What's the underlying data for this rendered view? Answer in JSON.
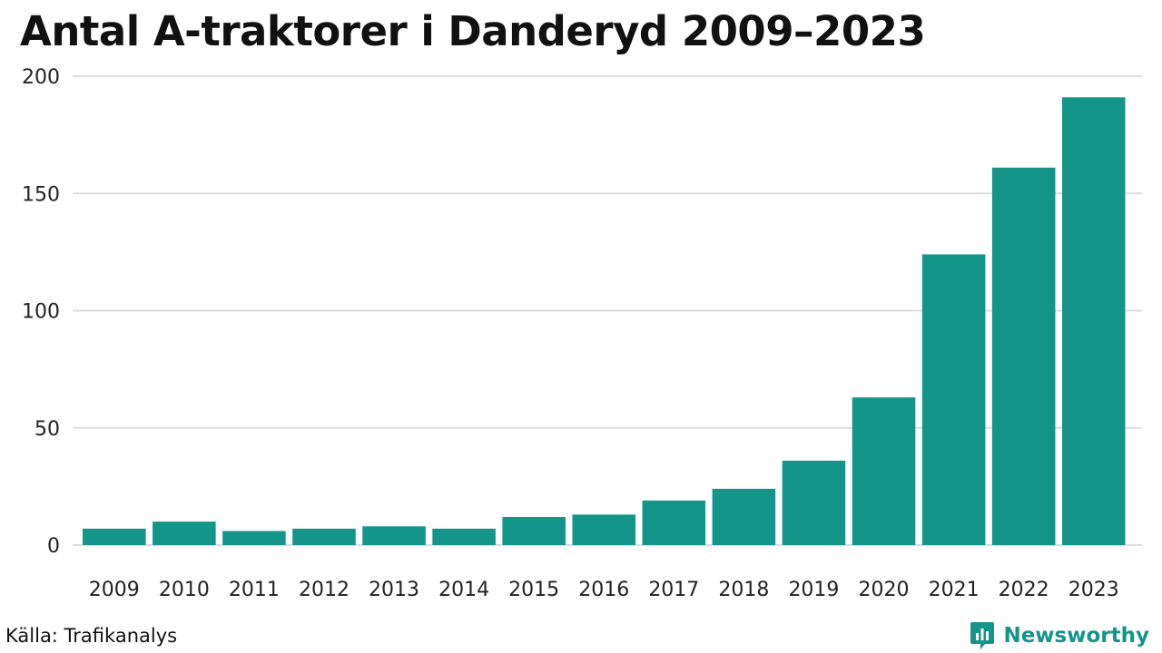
{
  "chart_data": {
    "type": "bar",
    "title": "Antal A-traktorer i Danderyd 2009–2023",
    "categories": [
      "2009",
      "2010",
      "2011",
      "2012",
      "2013",
      "2014",
      "2015",
      "2016",
      "2017",
      "2018",
      "2019",
      "2020",
      "2021",
      "2022",
      "2023"
    ],
    "values": [
      7,
      10,
      6,
      7,
      8,
      7,
      12,
      13,
      19,
      24,
      36,
      63,
      124,
      161,
      191
    ],
    "y_ticks": [
      0,
      50,
      100,
      150,
      200
    ],
    "ylim": [
      0,
      200
    ],
    "xlabel": "",
    "ylabel": "",
    "grid": true,
    "bar_color": "#14958a"
  },
  "source": "Källa: Trafikanalys",
  "brand": {
    "name": "Newsworthy",
    "color": "#14958a",
    "icon": "newsworthy-logo-icon"
  }
}
